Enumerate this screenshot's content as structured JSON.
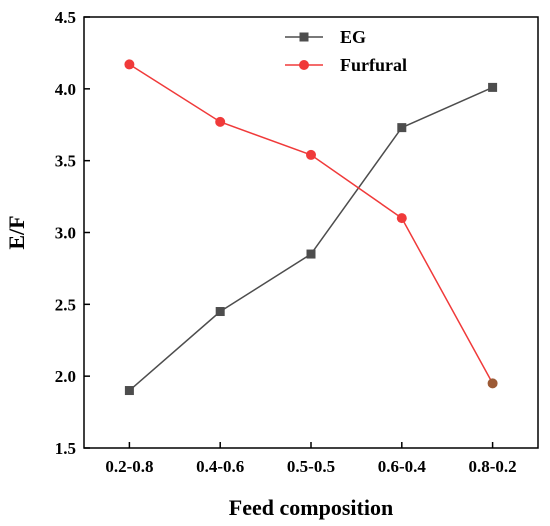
{
  "chart_data": {
    "type": "line",
    "xlabel": "Feed composition",
    "ylabel": "E/F",
    "categories": [
      "0.2-0.8",
      "0.4-0.6",
      "0.5-0.5",
      "0.6-0.4",
      "0.8-0.2"
    ],
    "ylim": [
      1.5,
      4.5
    ],
    "yticks": [
      "1.5",
      "2.0",
      "2.5",
      "3.0",
      "3.5",
      "4.0",
      "4.5"
    ],
    "grid": false,
    "legend_position": "top-center",
    "series": [
      {
        "name": "EG",
        "marker": "square",
        "color": "#4d4d4d",
        "values": [
          1.9,
          2.45,
          2.85,
          3.73,
          4.01
        ]
      },
      {
        "name": "Furfural",
        "marker": "circle",
        "color": "#f03a3a",
        "values": [
          4.17,
          3.77,
          3.54,
          3.1,
          1.95
        ]
      }
    ]
  }
}
